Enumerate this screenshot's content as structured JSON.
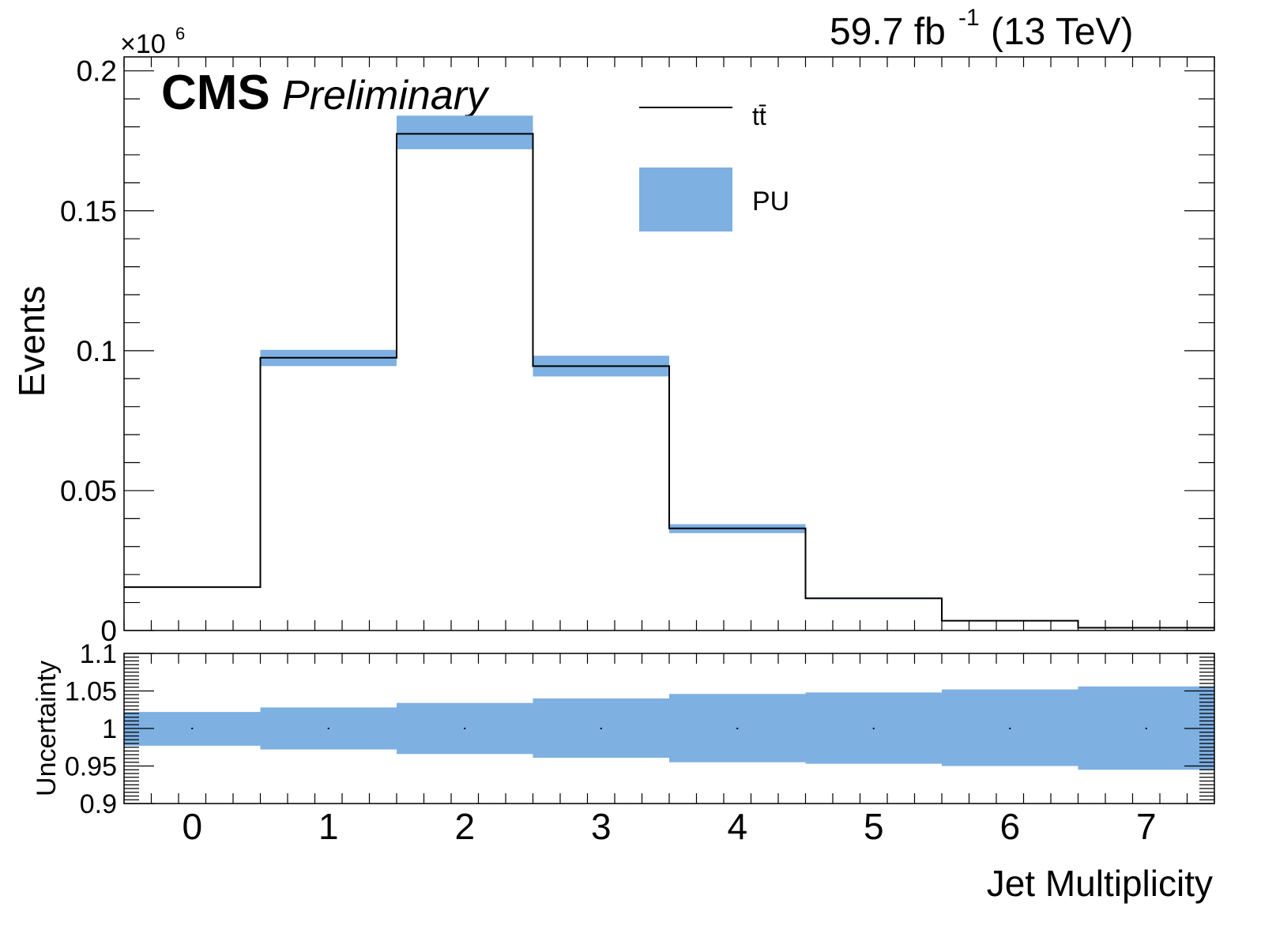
{
  "header": {
    "cms": "CMS",
    "preliminary": "Preliminary",
    "lumi_value": "59.7 fb",
    "lumi_exp": "-1",
    "energy": "(13 TeV)",
    "multiplier_base": "×10",
    "multiplier_exp": "6"
  },
  "legend": {
    "items": [
      {
        "label": "tt̄",
        "kind": "line",
        "color": "#000000"
      },
      {
        "label": "PU",
        "kind": "band",
        "color": "#7eb0e2"
      }
    ]
  },
  "colors": {
    "band": "#7eb0e2",
    "line": "#000000",
    "line_overlay": "#0d2a55"
  },
  "chart_data": [
    {
      "type": "bar",
      "subtype": "step-histogram",
      "title": "",
      "xlabel": "",
      "ylabel": "Events",
      "y_multiplier": "×10^6",
      "categories": [
        "0",
        "1",
        "2",
        "3",
        "4",
        "5",
        "6",
        "7"
      ],
      "xlim": [
        -0.5,
        7.5
      ],
      "ylim": [
        0,
        0.205
      ],
      "yticks": [
        "0",
        "0.05",
        "0.1",
        "0.15",
        "0.2"
      ],
      "series": [
        {
          "name": "tt̄",
          "values": [
            0.0155,
            0.0975,
            0.1775,
            0.0945,
            0.0365,
            0.0115,
            0.0035,
            0.001
          ]
        },
        {
          "name": "PU",
          "kind": "uncertainty-band",
          "lower": [
            0.0153,
            0.0945,
            0.172,
            0.0908,
            0.0348,
            0.0112,
            0.0034,
            0.001
          ],
          "upper": [
            0.0157,
            0.1003,
            0.184,
            0.0982,
            0.038,
            0.0117,
            0.0036,
            0.001
          ]
        }
      ],
      "legend_position": "top-center",
      "grid": false
    },
    {
      "type": "bar",
      "subtype": "ratio-band",
      "title": "",
      "xlabel": "Jet Multiplicity",
      "ylabel": "Uncertainty",
      "categories": [
        "0",
        "1",
        "2",
        "3",
        "4",
        "5",
        "6",
        "7"
      ],
      "xlim": [
        -0.5,
        7.5
      ],
      "ylim": [
        0.9,
        1.1
      ],
      "yticks": [
        "0.9",
        "0.95",
        "1",
        "1.05",
        "1.1"
      ],
      "xticks": [
        "0",
        "1",
        "2",
        "3",
        "4",
        "5",
        "6",
        "7"
      ],
      "series": [
        {
          "name": "PU",
          "kind": "uncertainty-band",
          "lower": [
            0.977,
            0.972,
            0.966,
            0.961,
            0.955,
            0.953,
            0.95,
            0.945
          ],
          "upper": [
            1.022,
            1.028,
            1.034,
            1.04,
            1.046,
            1.048,
            1.052,
            1.056
          ]
        }
      ],
      "grid": false
    }
  ]
}
